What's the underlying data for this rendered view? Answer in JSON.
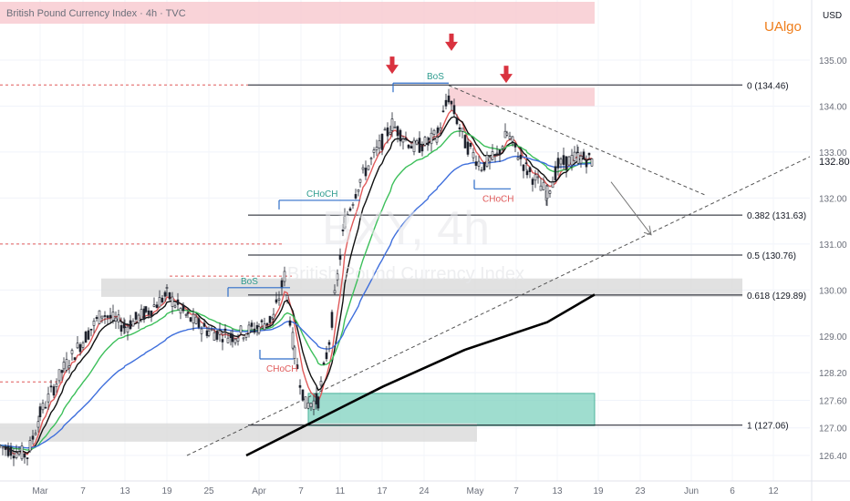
{
  "header": {
    "title": "British Pound Currency Index · 4h · TVC",
    "brand": "UAlgo",
    "currency": "USD"
  },
  "watermark": {
    "symbol": "BXY, 4h",
    "name": "British Pound Currency Index"
  },
  "colors": {
    "candle": "#1e222d",
    "ema_fast_red": "#e05a5a",
    "ema_black": "#111111",
    "ema_green": "#3cbf5a",
    "ema_blue": "#3f6fdc",
    "ema_long_black": "#000000",
    "supply_zone": "#f7c4cb",
    "demand_zone": "#7fd1bf",
    "grey_zone": "#d9d9d9",
    "bos_line": "#2f6ec9",
    "bos_text": "#2e9c8f",
    "choch_text_teal": "#2e9c8f",
    "choch_text_red": "#e05a5a",
    "arrow_red": "#d9323f",
    "brand_orange": "#ef7d1a",
    "dashed_red": "#e05a5a",
    "trendline": "#555555"
  },
  "chart_data": {
    "type": "candlestick",
    "title": "British Pound Currency Index · 4h · TVC",
    "ylabel": "USD",
    "ylim": [
      126.12,
      135.6
    ],
    "y_ticks": [
      126.4,
      127.0,
      127.6,
      128.2,
      129.0,
      130.0,
      131.0,
      132.0,
      133.0,
      134.0,
      135.0
    ],
    "x_ticks": [
      "Mar",
      "7",
      "13",
      "19",
      "25",
      "Apr",
      "7",
      "11",
      "17",
      "24",
      "May",
      "7",
      "13",
      "19",
      "23",
      "Jun",
      "6",
      "12"
    ],
    "last_price": "132.80",
    "fibonacci": [
      {
        "level": "0",
        "price": 134.46,
        "label": "0 (134.46)"
      },
      {
        "level": "0.382",
        "price": 131.63,
        "label": "0.382 (131.63)"
      },
      {
        "level": "0.5",
        "price": 130.76,
        "label": "0.5 (130.76)"
      },
      {
        "level": "0.618",
        "price": 129.89,
        "label": "0.618 (129.89)"
      },
      {
        "level": "1",
        "price": 127.06,
        "label": "1 (127.06)"
      }
    ],
    "zones": [
      {
        "kind": "supply",
        "top": 134.4,
        "bottom": 134.0
      },
      {
        "kind": "demand",
        "top": 127.75,
        "bottom": 127.05
      },
      {
        "kind": "neutral",
        "top": 130.25,
        "bottom": 129.85
      },
      {
        "kind": "neutral",
        "top": 127.1,
        "bottom": 126.7
      }
    ],
    "annotations": [
      {
        "text": "BoS",
        "kind": "bos",
        "price": 130.05
      },
      {
        "text": "BoS",
        "kind": "bos",
        "price": 134.5
      },
      {
        "text": "CHoCH",
        "kind": "choch",
        "price": 131.95
      },
      {
        "text": "CHoCH",
        "kind": "choch",
        "price": 128.5
      },
      {
        "text": "CHoCH",
        "kind": "choch",
        "price": 132.2
      }
    ],
    "close_path": [
      [
        "Feb 26",
        126.6
      ],
      [
        "Feb 28",
        126.4
      ],
      [
        "Mar 1",
        127.3
      ],
      [
        "Mar 4",
        128.3
      ],
      [
        "Mar 7",
        128.9
      ],
      [
        "Mar 10",
        129.5
      ],
      [
        "Mar 13",
        129.2
      ],
      [
        "Mar 16",
        129.5
      ],
      [
        "Mar 19",
        129.9
      ],
      [
        "Mar 22",
        129.4
      ],
      [
        "Mar 25",
        129.1
      ],
      [
        "Mar 28",
        129.0
      ],
      [
        "Apr 1",
        129.2
      ],
      [
        "Apr 3",
        129.4
      ],
      [
        "Apr 4",
        130.3
      ],
      [
        "Apr 6",
        128.6
      ],
      [
        "Apr 8",
        127.5
      ],
      [
        "Apr 9",
        127.6
      ],
      [
        "Apr 10",
        128.9
      ],
      [
        "Apr 12",
        131.5
      ],
      [
        "Apr 15",
        132.4
      ],
      [
        "Apr 17",
        133.6
      ],
      [
        "Apr 19",
        133.1
      ],
      [
        "Apr 22",
        133.2
      ],
      [
        "Apr 24",
        133.4
      ],
      [
        "Apr 26",
        134.2
      ],
      [
        "Apr 29",
        133.2
      ],
      [
        "May 1",
        132.7
      ],
      [
        "May 4",
        132.9
      ],
      [
        "May 6",
        133.4
      ],
      [
        "May 8",
        132.6
      ],
      [
        "May 10",
        132.1
      ],
      [
        "May 12",
        132.7
      ],
      [
        "May 15",
        132.9
      ],
      [
        "May 17",
        132.8
      ]
    ]
  }
}
